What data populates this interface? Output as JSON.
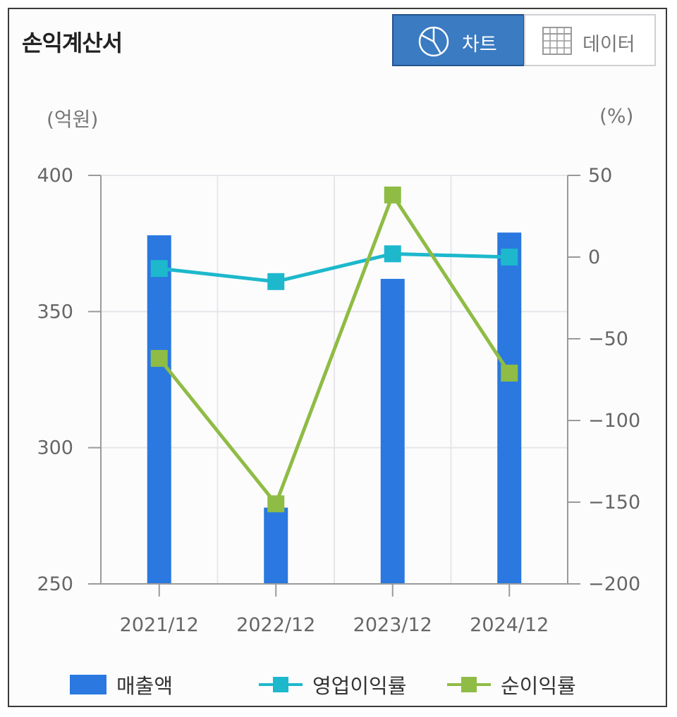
{
  "header": {
    "title": "손익계산서"
  },
  "toggles": {
    "chart_label": "차트",
    "data_label": "데이터"
  },
  "units": {
    "left": "(억원)",
    "right": "(%)"
  },
  "colors": {
    "revenue": "#2a78e0",
    "operating_margin": "#1db8cc",
    "net_margin": "#8fbc45",
    "toggle_active": "#3a7bc2"
  },
  "chart_data": {
    "type": "bar",
    "categories": [
      "2021/12",
      "2022/12",
      "2023/12",
      "2024/12"
    ],
    "series": [
      {
        "name": "매출액",
        "type": "bar",
        "axis": "left",
        "values": [
          378,
          278,
          362,
          379
        ]
      },
      {
        "name": "영업이익률",
        "type": "line",
        "axis": "right",
        "values": [
          -7,
          -15,
          2,
          0
        ]
      },
      {
        "name": "순이익률",
        "type": "line",
        "axis": "right",
        "values": [
          -62,
          -151,
          38,
          -71
        ]
      }
    ],
    "y_left": {
      "min": 250,
      "max": 400,
      "ticks": [
        "400",
        "350",
        "300",
        "250"
      ]
    },
    "y_right": {
      "min": -200,
      "max": 50,
      "ticks": [
        "50",
        "0",
        "-50",
        "-100",
        "-150",
        "-200"
      ]
    },
    "grid": true,
    "legend_position": "bottom"
  }
}
